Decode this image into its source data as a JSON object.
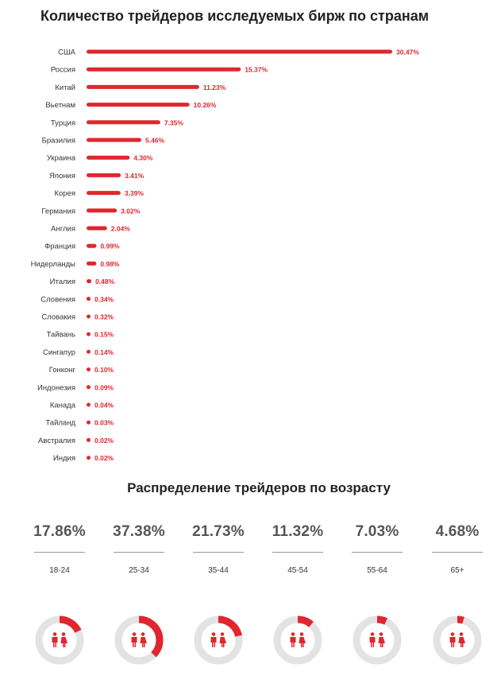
{
  "titles": {
    "countries": "Количество трейдеров исследуемых бирж по странам",
    "age": "Распределение трейдеров по возрасту"
  },
  "colors": {
    "accent": "#e0262f",
    "track": "#e3e3e3",
    "icon": "#e0262f"
  },
  "chart_data": [
    {
      "type": "bar",
      "orientation": "horizontal",
      "title": "Количество трейдеров исследуемых бирж по странам",
      "categories": [
        "США",
        "Россия",
        "Китай",
        "Вьетнам",
        "Турция",
        "Бразилия",
        "Украина",
        "Япония",
        "Корея",
        "Германия",
        "Англия",
        "Франция",
        "Нидерланды",
        "Италия",
        "Словения",
        "Словакия",
        "Тайвань",
        "Сингапур",
        "Гонконг",
        "Индонезия",
        "Канада",
        "Тайланд",
        "Австралия",
        "Индия"
      ],
      "values": [
        30.47,
        15.37,
        11.23,
        10.26,
        7.35,
        5.46,
        4.3,
        3.41,
        3.39,
        3.02,
        2.04,
        0.99,
        0.98,
        0.48,
        0.34,
        0.32,
        0.15,
        0.14,
        0.1,
        0.09,
        0.04,
        0.03,
        0.02,
        0.02
      ],
      "labels": [
        "30.47%",
        "15.37%",
        "11.23%",
        "10.26%",
        "7.35%",
        "5.46%",
        "4.30%",
        "3.41%",
        "3.39%",
        "3.02%",
        "2.04%",
        "0.99%",
        "0.98%",
        "0.48%",
        "0.34%",
        "0.32%",
        "0.15%",
        "0.14%",
        "0.10%",
        "0.09%",
        "0.04%",
        "0.03%",
        "0.02%",
        "0.02%"
      ]
    },
    {
      "type": "pie",
      "title": "Распределение трейдеров по возрасту",
      "categories": [
        "18-24",
        "25-34",
        "35-44",
        "45-54",
        "55-64",
        "65+"
      ],
      "values": [
        17.86,
        37.38,
        21.73,
        11.32,
        7.03,
        4.68
      ],
      "labels": [
        "17.86%",
        "37.38%",
        "21.73%",
        "11.32%",
        "7.03%",
        "4.68%"
      ]
    }
  ]
}
